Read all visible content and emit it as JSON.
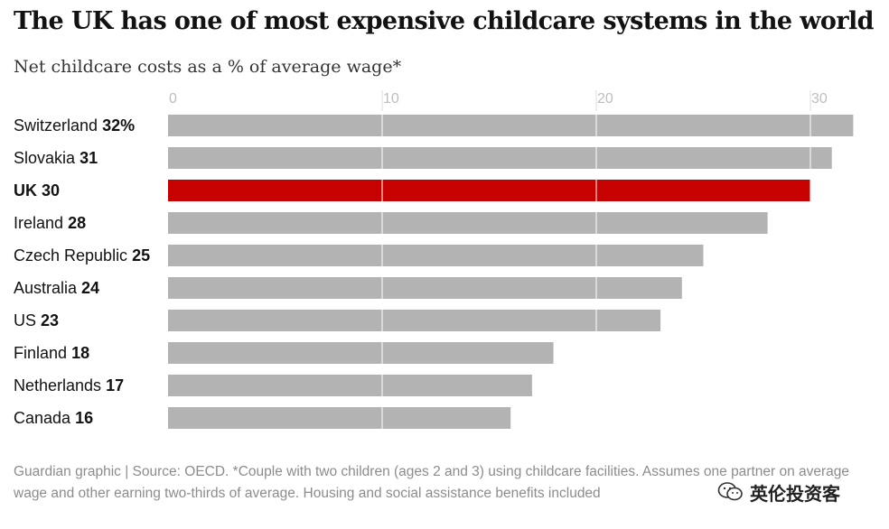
{
  "title": "The UK has one of most expensive childcare systems in the world",
  "subtitle": "Net childcare costs as a % of average wage*",
  "footer": "Guardian graphic | Source: OECD. *Couple with two children (ages 2 and 3) using childcare facilities. Assumes one partner on average wage and other earning two-thirds of average. Housing and social assistance benefits included",
  "watermark": {
    "text": "英伦投资客",
    "icon": "wechat-icon"
  },
  "colors": {
    "bar": "#b3b3b3",
    "highlight": "#c70000",
    "grid": "#ffffff",
    "tick": "#bdbdbd"
  },
  "chart_data": {
    "type": "bar",
    "orientation": "horizontal",
    "title": "The UK has one of most expensive childcare systems in the world",
    "subtitle": "Net childcare costs as a % of average wage*",
    "xlabel": "",
    "ylabel": "",
    "xlim": [
      0,
      32
    ],
    "xticks": [
      0,
      10,
      20,
      30
    ],
    "grid": true,
    "highlight": "UK",
    "categories": [
      "Switzerland",
      "Slovakia",
      "UK",
      "Ireland",
      "Czech Republic",
      "Australia",
      "US",
      "Finland",
      "Netherlands",
      "Canada"
    ],
    "values": [
      32,
      31,
      30,
      28,
      25,
      24,
      23,
      18,
      17,
      16
    ],
    "value_labels": [
      "32%",
      "31",
      "30",
      "28",
      "25",
      "24",
      "23",
      "18",
      "17",
      "16"
    ]
  }
}
